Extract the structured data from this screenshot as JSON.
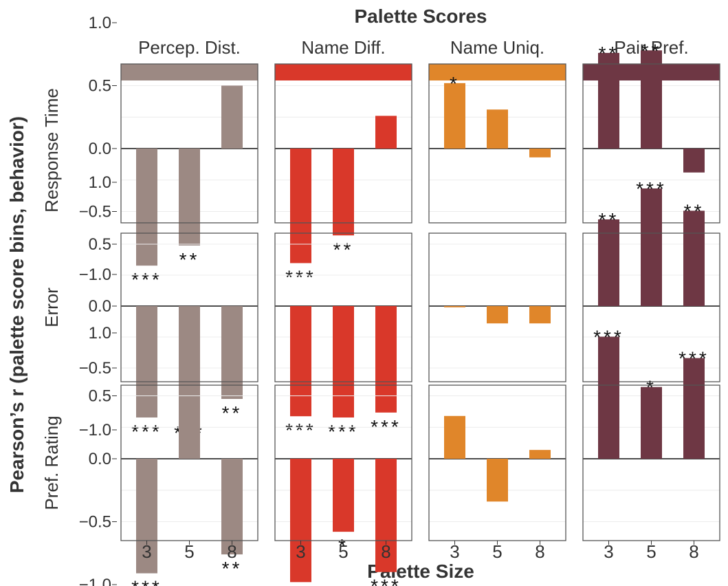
{
  "chart_data": {
    "type": "bar",
    "title": "Palette Scores",
    "xlabel": "Palette Size",
    "ylabel": "Pearson’s r (palette score bins, behavior)",
    "categories": [
      "3",
      "5",
      "8"
    ],
    "ylim": [
      -1.1,
      1.3
    ],
    "yticks": [
      1.0,
      0.5,
      0.0,
      -0.5,
      -1.0
    ],
    "ytick_labels": [
      "1.0",
      "0.5",
      "0.0",
      "−0.5",
      "−1.0"
    ],
    "grid": true,
    "columns": [
      {
        "name": "Percep. Dist.",
        "color": "#9c8983"
      },
      {
        "name": "Name Diff.",
        "color": "#d9382a"
      },
      {
        "name": "Name Uniq.",
        "color": "#e0862a"
      },
      {
        "name": "Pair Pref.",
        "color": "#6e3744"
      }
    ],
    "rows": [
      {
        "name": "Response Time",
        "panels": [
          {
            "values": [
              -0.93,
              -0.77,
              0.5
            ],
            "significance": [
              "***",
              "**",
              ""
            ]
          },
          {
            "values": [
              -0.91,
              -0.69,
              0.26
            ],
            "significance": [
              "***",
              "**",
              ""
            ]
          },
          {
            "values": [
              0.52,
              0.31,
              -0.07
            ],
            "significance": [
              "*",
              "",
              ""
            ]
          },
          {
            "values": [
              0.76,
              0.78,
              -0.19
            ],
            "significance": [
              "**",
              "**",
              ""
            ]
          }
        ]
      },
      {
        "name": "Error",
        "panels": [
          {
            "values": [
              -0.9,
              -0.91,
              -0.75
            ],
            "significance": [
              "***",
              "***",
              "**"
            ]
          },
          {
            "values": [
              -0.89,
              -0.9,
              -0.86
            ],
            "significance": [
              "***",
              "***",
              "***"
            ]
          },
          {
            "values": [
              -0.01,
              -0.14,
              -0.14
            ],
            "significance": [
              "",
              "",
              ""
            ]
          },
          {
            "values": [
              0.7,
              0.95,
              0.77
            ],
            "significance": [
              "**",
              "***",
              "**"
            ]
          }
        ]
      },
      {
        "name": "Pref. Rating",
        "panels": [
          {
            "values": [
              -0.91,
              0.42,
              -0.76
            ],
            "significance": [
              "***",
              "",
              "**"
            ]
          },
          {
            "values": [
              -0.98,
              -0.58,
              -0.9
            ],
            "significance": [
              "***",
              "*",
              "***"
            ]
          },
          {
            "values": [
              0.34,
              -0.34,
              0.07
            ],
            "significance": [
              "",
              "",
              ""
            ]
          },
          {
            "values": [
              0.97,
              0.57,
              0.8
            ],
            "significance": [
              "***",
              "*",
              "***"
            ]
          }
        ]
      }
    ]
  }
}
